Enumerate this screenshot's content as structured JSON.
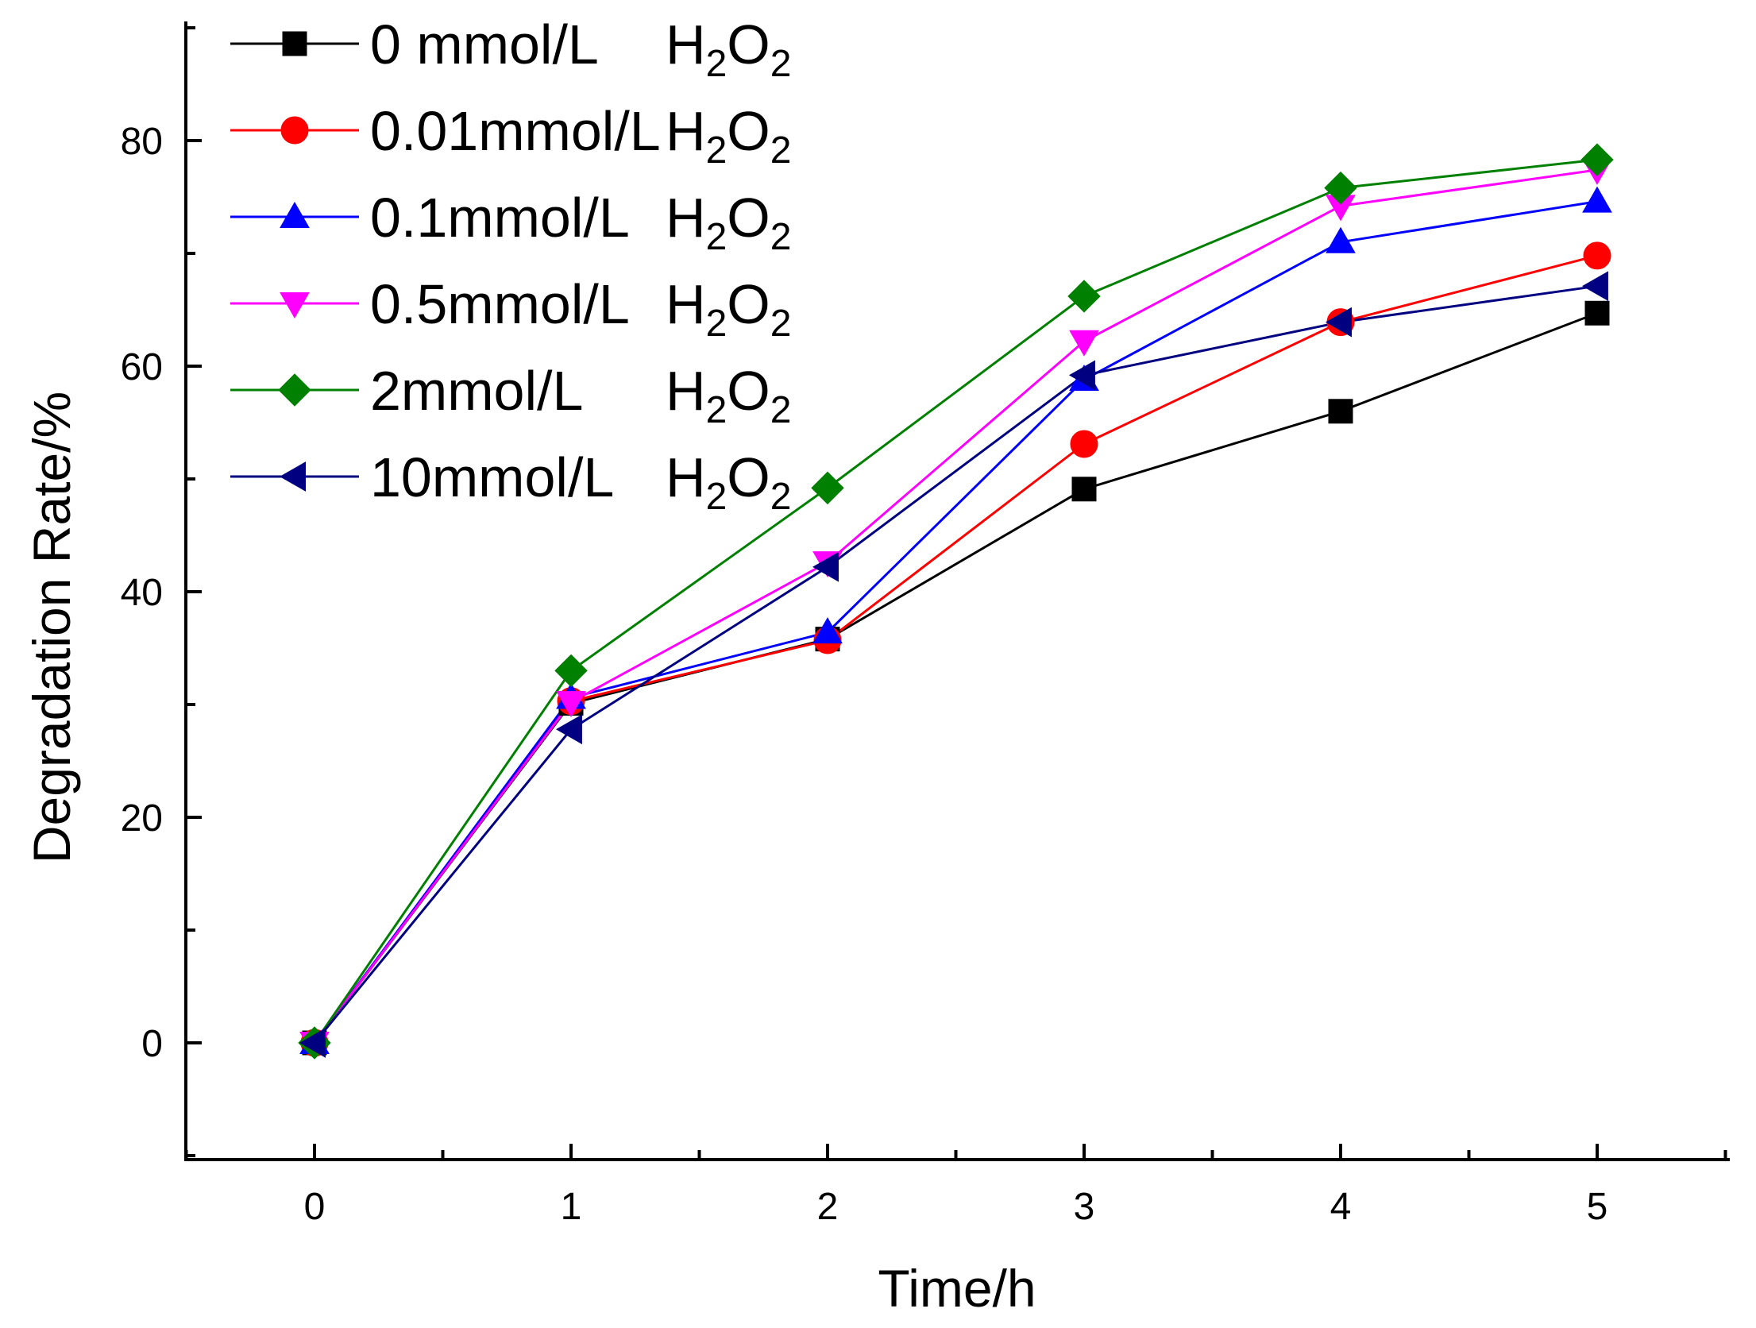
{
  "chart_data": {
    "type": "line",
    "title": "",
    "xlabel": "Time/h",
    "ylabel": "Degradation Rate/%",
    "x": [
      0,
      1,
      2,
      3,
      4,
      5
    ],
    "xlim": [
      -0.5,
      5.5
    ],
    "ylim": [
      -10,
      90
    ],
    "xticks": [
      "0",
      "1",
      "2",
      "3",
      "4",
      "5"
    ],
    "yticks": [
      "0",
      "20",
      "40",
      "60",
      "80"
    ],
    "grid": false,
    "legend_position": "top-left",
    "series": [
      {
        "name": "0 mmol/L",
        "suffix": "H",
        "sub1": "2",
        "mid": "O",
        "sub2": "2",
        "color": "#000000",
        "marker": "square",
        "values": [
          0,
          30.1,
          35.8,
          49.1,
          56.0,
          64.7
        ]
      },
      {
        "name": "0.01mmol/L",
        "suffix": "H",
        "sub1": "2",
        "mid": "O",
        "sub2": "2",
        "color": "#ff0000",
        "marker": "circle",
        "values": [
          0,
          30.3,
          35.7,
          53.1,
          63.9,
          69.8
        ]
      },
      {
        "name": "0.1mmol/L",
        "suffix": "H",
        "sub1": "2",
        "mid": "O",
        "sub2": "2",
        "color": "#0000ff",
        "marker": "triangle-up",
        "values": [
          0,
          30.6,
          36.4,
          58.8,
          71.0,
          74.6
        ]
      },
      {
        "name": "0.5mmol/L",
        "suffix": "H",
        "sub1": "2",
        "mid": "O",
        "sub2": "2",
        "color": "#ff00ff",
        "marker": "triangle-down",
        "values": [
          0,
          30.2,
          42.6,
          62.2,
          74.2,
          77.4
        ]
      },
      {
        "name": "2mmol/L",
        "suffix": "H",
        "sub1": "2",
        "mid": "O",
        "sub2": "2",
        "color": "#008000",
        "marker": "diamond",
        "values": [
          0,
          33.0,
          49.2,
          66.2,
          75.8,
          78.3
        ]
      },
      {
        "name": "10mmol/L",
        "suffix": "H",
        "sub1": "2",
        "mid": "O",
        "sub2": "2",
        "color": "#000080",
        "marker": "triangle-left",
        "values": [
          0,
          27.8,
          42.2,
          59.2,
          63.9,
          67.1
        ]
      }
    ]
  }
}
